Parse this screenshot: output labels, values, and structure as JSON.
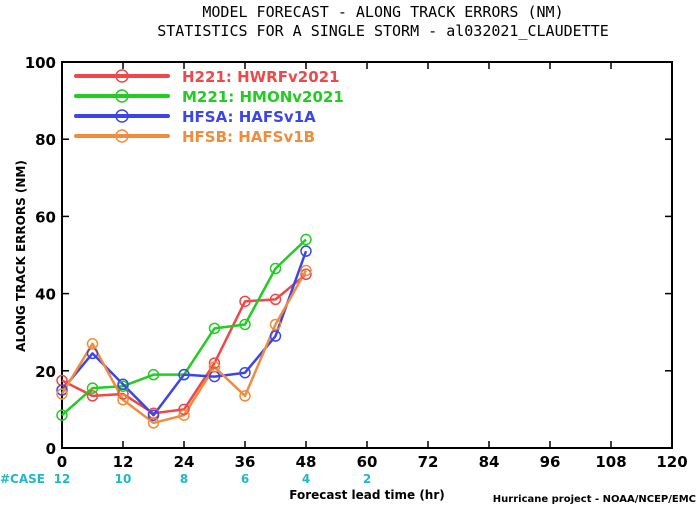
{
  "chart_data": {
    "type": "line",
    "title": "MODEL FORECAST - ALONG TRACK ERRORS (NM)",
    "subtitle": "STATISTICS FOR A SINGLE STORM - al032021_CLAUDETTE",
    "xlabel": "Forecast lead time (hr)",
    "ylabel": "ALONG TRACK ERRORS (NM)",
    "xlim": [
      0,
      120
    ],
    "ylim": [
      0,
      100
    ],
    "x_ticks": [
      0,
      12,
      24,
      36,
      48,
      60,
      72,
      84,
      96,
      108,
      120
    ],
    "y_ticks": [
      0,
      20,
      40,
      60,
      80,
      100
    ],
    "grid": false,
    "legend_position": "top-left",
    "x": [
      0,
      6,
      12,
      18,
      24,
      30,
      36,
      42,
      48
    ],
    "series": [
      {
        "name": "H221: HWRFv2021",
        "color": "#f04848",
        "values": [
          17.5,
          13.5,
          14,
          9,
          10,
          22,
          38,
          38.5,
          45
        ]
      },
      {
        "name": "M221: HMONv2021",
        "color": "#22cc22",
        "values": [
          8.5,
          15.5,
          16,
          19,
          19,
          31,
          32,
          46.5,
          54
        ]
      },
      {
        "name": "HFSA: HAFSv1A",
        "color": "#3c46e6",
        "values": [
          15,
          24.5,
          16.5,
          8.5,
          19,
          18.5,
          19.5,
          29,
          51
        ]
      },
      {
        "name": "HFSB: HAFSv1B",
        "color": "#f08c3c",
        "values": [
          14,
          27,
          12.5,
          6.5,
          8.5,
          21,
          13.5,
          32,
          46
        ]
      }
    ],
    "case_label": "#CASE",
    "cases": [
      {
        "x": 0,
        "n": "12"
      },
      {
        "x": 12,
        "n": "10"
      },
      {
        "x": 24,
        "n": "8"
      },
      {
        "x": 36,
        "n": "6"
      },
      {
        "x": 48,
        "n": "4"
      },
      {
        "x": 60,
        "n": "2"
      }
    ],
    "credit": "Hurricane project - NOAA/NCEP/EMC"
  }
}
